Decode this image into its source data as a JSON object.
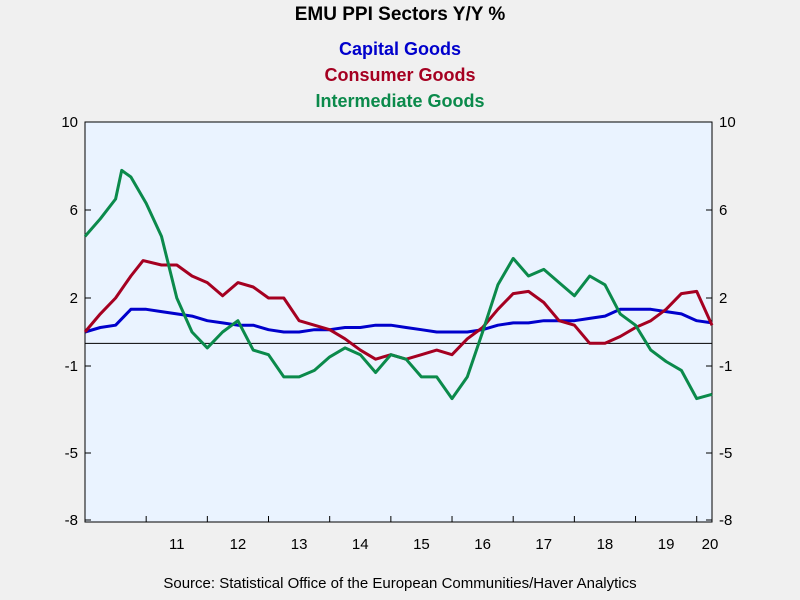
{
  "chart_data": {
    "type": "line",
    "title": "EMU PPI Sectors Y/Y %",
    "source": "Source:  Statistical Office of the European Communities/Haver Analytics",
    "ylim": [
      -8,
      10
    ],
    "y_ticks": [
      10,
      6,
      2,
      -1,
      -5,
      -8
    ],
    "x_range": [
      2010.0,
      2020.25
    ],
    "x_tick_labels": [
      "11",
      "12",
      "13",
      "14",
      "15",
      "16",
      "17",
      "18",
      "19",
      "20"
    ],
    "zero_line": 0,
    "grid": false,
    "legend_position": "top-center",
    "series": [
      {
        "name": "Capital Goods",
        "color": "#0000cc",
        "points": [
          [
            2010.0,
            0.5
          ],
          [
            2010.25,
            0.7
          ],
          [
            2010.5,
            0.8
          ],
          [
            2010.75,
            1.5
          ],
          [
            2011.0,
            1.5
          ],
          [
            2011.25,
            1.4
          ],
          [
            2011.5,
            1.3
          ],
          [
            2011.75,
            1.2
          ],
          [
            2012.0,
            1.0
          ],
          [
            2012.25,
            0.9
          ],
          [
            2012.5,
            0.8
          ],
          [
            2012.75,
            0.8
          ],
          [
            2013.0,
            0.6
          ],
          [
            2013.25,
            0.5
          ],
          [
            2013.5,
            0.5
          ],
          [
            2013.75,
            0.6
          ],
          [
            2014.0,
            0.6
          ],
          [
            2014.25,
            0.7
          ],
          [
            2014.5,
            0.7
          ],
          [
            2014.75,
            0.8
          ],
          [
            2015.0,
            0.8
          ],
          [
            2015.25,
            0.7
          ],
          [
            2015.5,
            0.6
          ],
          [
            2015.75,
            0.5
          ],
          [
            2016.0,
            0.5
          ],
          [
            2016.25,
            0.5
          ],
          [
            2016.5,
            0.6
          ],
          [
            2016.75,
            0.8
          ],
          [
            2017.0,
            0.9
          ],
          [
            2017.25,
            0.9
          ],
          [
            2017.5,
            1.0
          ],
          [
            2017.75,
            1.0
          ],
          [
            2018.0,
            1.0
          ],
          [
            2018.25,
            1.1
          ],
          [
            2018.5,
            1.2
          ],
          [
            2018.75,
            1.5
          ],
          [
            2019.0,
            1.5
          ],
          [
            2019.25,
            1.5
          ],
          [
            2019.5,
            1.4
          ],
          [
            2019.75,
            1.3
          ],
          [
            2020.0,
            1.0
          ],
          [
            2020.25,
            0.9
          ]
        ]
      },
      {
        "name": "Consumer Goods",
        "color": "#a50021",
        "points": [
          [
            2010.0,
            0.5
          ],
          [
            2010.25,
            1.3
          ],
          [
            2010.5,
            2.0
          ],
          [
            2010.75,
            3.0
          ],
          [
            2010.95,
            3.7
          ],
          [
            2011.25,
            3.5
          ],
          [
            2011.5,
            3.5
          ],
          [
            2011.75,
            3.0
          ],
          [
            2012.0,
            2.7
          ],
          [
            2012.25,
            2.1
          ],
          [
            2012.5,
            2.7
          ],
          [
            2012.75,
            2.5
          ],
          [
            2013.0,
            2.0
          ],
          [
            2013.25,
            2.0
          ],
          [
            2013.5,
            1.0
          ],
          [
            2013.75,
            0.8
          ],
          [
            2014.0,
            0.6
          ],
          [
            2014.25,
            0.2
          ],
          [
            2014.5,
            -0.3
          ],
          [
            2014.75,
            -0.7
          ],
          [
            2015.0,
            -0.5
          ],
          [
            2015.25,
            -0.7
          ],
          [
            2015.5,
            -0.5
          ],
          [
            2015.75,
            -0.3
          ],
          [
            2016.0,
            -0.5
          ],
          [
            2016.25,
            0.2
          ],
          [
            2016.5,
            0.7
          ],
          [
            2016.75,
            1.5
          ],
          [
            2017.0,
            2.2
          ],
          [
            2017.25,
            2.3
          ],
          [
            2017.5,
            1.8
          ],
          [
            2017.75,
            1.0
          ],
          [
            2018.0,
            0.8
          ],
          [
            2018.25,
            0.0
          ],
          [
            2018.5,
            0.0
          ],
          [
            2018.75,
            0.3
          ],
          [
            2019.0,
            0.7
          ],
          [
            2019.25,
            1.0
          ],
          [
            2019.5,
            1.5
          ],
          [
            2019.75,
            2.2
          ],
          [
            2020.0,
            2.3
          ],
          [
            2020.25,
            0.8
          ]
        ]
      },
      {
        "name": "Intermediate Goods",
        "color": "#0b8a4b",
        "points": [
          [
            2010.0,
            4.8
          ],
          [
            2010.25,
            5.6
          ],
          [
            2010.5,
            6.5
          ],
          [
            2010.6,
            7.8
          ],
          [
            2010.75,
            7.5
          ],
          [
            2011.0,
            6.3
          ],
          [
            2011.25,
            4.8
          ],
          [
            2011.5,
            2.0
          ],
          [
            2011.75,
            0.5
          ],
          [
            2012.0,
            -0.2
          ],
          [
            2012.25,
            0.5
          ],
          [
            2012.5,
            1.0
          ],
          [
            2012.75,
            -0.3
          ],
          [
            2013.0,
            -0.5
          ],
          [
            2013.25,
            -1.5
          ],
          [
            2013.5,
            -1.5
          ],
          [
            2013.75,
            -1.2
          ],
          [
            2014.0,
            -0.6
          ],
          [
            2014.25,
            -0.2
          ],
          [
            2014.5,
            -0.5
          ],
          [
            2014.75,
            -1.3
          ],
          [
            2015.0,
            -0.5
          ],
          [
            2015.25,
            -0.7
          ],
          [
            2015.5,
            -1.5
          ],
          [
            2015.75,
            -1.5
          ],
          [
            2016.0,
            -2.5
          ],
          [
            2016.25,
            -1.5
          ],
          [
            2016.5,
            0.5
          ],
          [
            2016.75,
            2.6
          ],
          [
            2017.0,
            3.8
          ],
          [
            2017.25,
            3.0
          ],
          [
            2017.5,
            3.3
          ],
          [
            2017.75,
            2.7
          ],
          [
            2018.0,
            2.1
          ],
          [
            2018.25,
            3.0
          ],
          [
            2018.5,
            2.6
          ],
          [
            2018.75,
            1.3
          ],
          [
            2019.0,
            0.8
          ],
          [
            2019.25,
            -0.3
          ],
          [
            2019.5,
            -0.8
          ],
          [
            2019.75,
            -1.2
          ],
          [
            2020.0,
            -2.5
          ],
          [
            2020.25,
            -2.3
          ]
        ]
      }
    ]
  }
}
